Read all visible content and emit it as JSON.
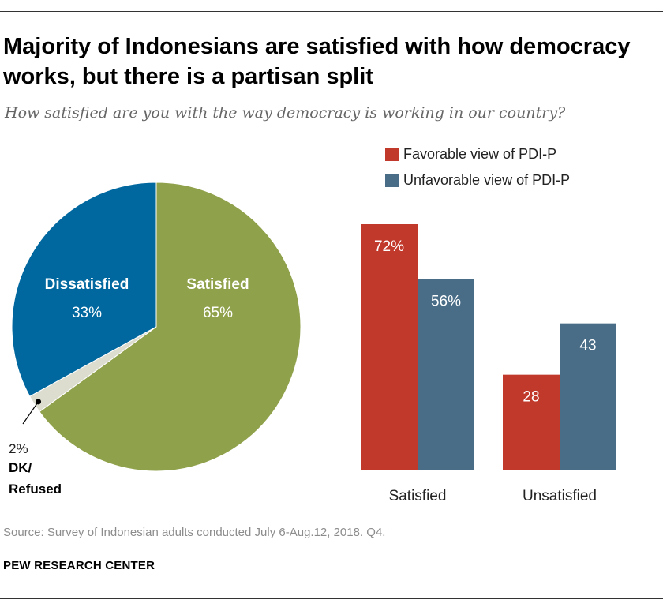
{
  "title": "Majority of Indonesians are satisfied with how democracy works, but there is a partisan split",
  "subtitle": "How satisfied are you with the way democracy is working in our country?",
  "source": "Source: Survey of Indonesian adults conducted July 6-Aug.12, 2018. Q4.",
  "organization": "PEW RESEARCH CENTER",
  "chart_data": [
    {
      "type": "pie",
      "slices": [
        {
          "label": "Satisfied",
          "value": 65,
          "value_label": "65%",
          "color": "#8fa14a"
        },
        {
          "label": "DK/ Refused",
          "value": 2,
          "value_label": "2%",
          "color": "#dcdccf"
        },
        {
          "label": "Dissatisfied",
          "value": 33,
          "value_label": "33%",
          "color": "#01689f"
        }
      ]
    },
    {
      "type": "bar",
      "categories": [
        "Satisfied",
        "Unsatisfied"
      ],
      "series": [
        {
          "name": "Favorable view of PDI-P",
          "values": [
            72,
            28
          ],
          "value_labels": [
            "72%",
            "28"
          ],
          "color": "#c0392b"
        },
        {
          "name": "Unfavorable view of PDI-P",
          "values": [
            56,
            43
          ],
          "value_labels": [
            "56%",
            "43"
          ],
          "color": "#4a6d87"
        }
      ],
      "legend_position": "top-right",
      "grid": false
    }
  ]
}
